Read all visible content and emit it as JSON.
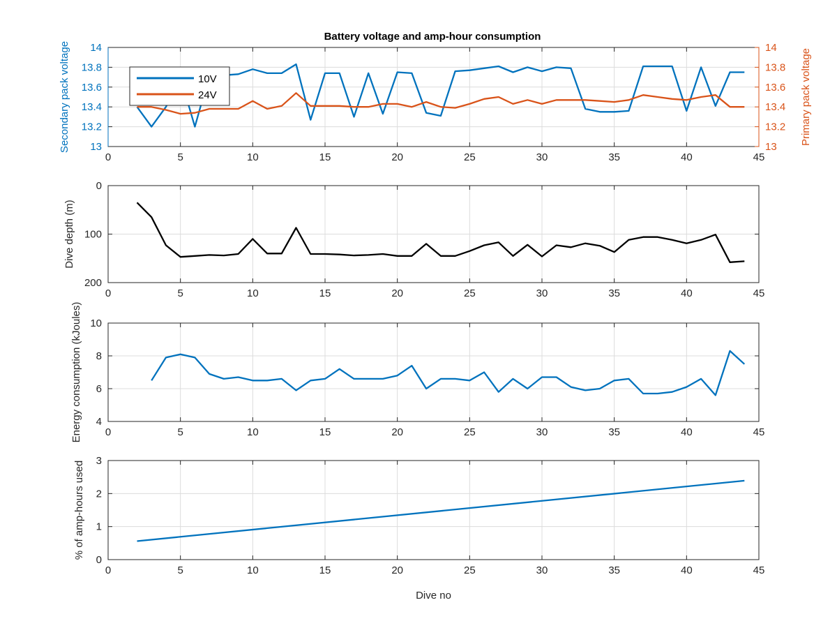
{
  "figure": {
    "title": "Battery voltage and amp-hour consumption",
    "xlabel": "Dive no"
  },
  "chart_data": [
    {
      "type": "line",
      "title": "Battery voltage and amp-hour consumption",
      "xlabel": "",
      "xlim": [
        0,
        45
      ],
      "xticks": [
        0,
        5,
        10,
        15,
        20,
        25,
        30,
        35,
        40,
        45
      ],
      "ylabel": "Secondary pack voltage",
      "ylim": [
        13,
        14
      ],
      "yticks": [
        "13",
        "13.2",
        "13.4",
        "13.6",
        "13.8",
        "14"
      ],
      "ylabel_right": "Primary pack voltage",
      "ylim_right": [
        13,
        14
      ],
      "yticks_right": [
        "13",
        "13.2",
        "13.4",
        "13.6",
        "13.8",
        "14"
      ],
      "legend": "top-left",
      "grid": true,
      "x": [
        2,
        3,
        4,
        5,
        6,
        7,
        8,
        9,
        10,
        11,
        12,
        13,
        14,
        15,
        16,
        17,
        18,
        19,
        20,
        21,
        22,
        23,
        24,
        25,
        26,
        27,
        28,
        29,
        30,
        31,
        32,
        33,
        34,
        35,
        36,
        37,
        38,
        39,
        40,
        41,
        42,
        43,
        44
      ],
      "series": [
        {
          "name": "10V",
          "axis": "left",
          "color": "#0072BD",
          "values": [
            13.4,
            13.2,
            13.4,
            13.7,
            13.2,
            13.72,
            13.72,
            13.73,
            13.78,
            13.74,
            13.74,
            13.83,
            13.27,
            13.74,
            13.74,
            13.3,
            13.74,
            13.33,
            13.75,
            13.74,
            13.34,
            13.31,
            13.76,
            13.77,
            13.79,
            13.81,
            13.75,
            13.8,
            13.76,
            13.8,
            13.79,
            13.38,
            13.35,
            13.35,
            13.36,
            13.81,
            13.81,
            13.81,
            13.36,
            13.8,
            13.41,
            13.75,
            13.75
          ]
        },
        {
          "name": "24V",
          "axis": "right",
          "color": "#D95319",
          "values": [
            13.4,
            13.4,
            13.37,
            13.33,
            13.34,
            13.38,
            13.38,
            13.38,
            13.46,
            13.38,
            13.41,
            13.54,
            13.41,
            13.41,
            13.41,
            13.4,
            13.4,
            13.43,
            13.43,
            13.4,
            13.45,
            13.4,
            13.39,
            13.43,
            13.48,
            13.5,
            13.43,
            13.47,
            13.43,
            13.47,
            13.47,
            13.47,
            13.46,
            13.45,
            13.47,
            13.52,
            13.5,
            13.48,
            13.47,
            13.5,
            13.52,
            13.4,
            13.4
          ]
        }
      ]
    },
    {
      "type": "line",
      "title": "",
      "xlabel": "",
      "xlim": [
        0,
        45
      ],
      "xticks": [
        0,
        5,
        10,
        15,
        20,
        25,
        30,
        35,
        40,
        45
      ],
      "ylabel": "Dive depth (m)",
      "ylim": [
        0,
        200
      ],
      "yticks": [
        "0",
        "100",
        "200"
      ],
      "y_reversed": true,
      "grid": true,
      "x": [
        2,
        3,
        4,
        5,
        6,
        7,
        8,
        9,
        10,
        11,
        12,
        13,
        14,
        15,
        16,
        17,
        18,
        19,
        20,
        21,
        22,
        23,
        24,
        25,
        26,
        27,
        28,
        29,
        30,
        31,
        32,
        33,
        34,
        35,
        36,
        37,
        38,
        39,
        40,
        41,
        42,
        43,
        44
      ],
      "series": [
        {
          "color": "#000000",
          "values": [
            35,
            65,
            123,
            147,
            145,
            143,
            144,
            141,
            110,
            140,
            140,
            87,
            141,
            141,
            142,
            144,
            143,
            141,
            145,
            145,
            120,
            145,
            145,
            135,
            123,
            117,
            145,
            122,
            146,
            123,
            127,
            119,
            124,
            137,
            112,
            106,
            106,
            112,
            119,
            112,
            101,
            158,
            156
          ]
        }
      ]
    },
    {
      "type": "line",
      "title": "",
      "xlabel": "",
      "xlim": [
        0,
        45
      ],
      "xticks": [
        0,
        5,
        10,
        15,
        20,
        25,
        30,
        35,
        40,
        45
      ],
      "ylabel": "Energy consumption (kJoules)",
      "ylim": [
        4,
        10
      ],
      "yticks": [
        "4",
        "6",
        "8",
        "10"
      ],
      "grid": true,
      "x": [
        3,
        4,
        5,
        6,
        7,
        8,
        9,
        10,
        11,
        12,
        13,
        14,
        15,
        16,
        17,
        18,
        19,
        20,
        21,
        22,
        23,
        24,
        25,
        26,
        27,
        28,
        29,
        30,
        31,
        32,
        33,
        34,
        35,
        36,
        37,
        38,
        39,
        40,
        41,
        42,
        43,
        44
      ],
      "series": [
        {
          "color": "#0072BD",
          "values": [
            6.5,
            7.9,
            8.1,
            7.9,
            6.9,
            6.6,
            6.7,
            6.5,
            6.5,
            6.6,
            5.9,
            6.5,
            6.6,
            7.2,
            6.6,
            6.6,
            6.6,
            6.8,
            7.4,
            6.0,
            6.6,
            6.6,
            6.5,
            7.0,
            5.8,
            6.6,
            6.0,
            6.7,
            6.7,
            6.1,
            5.9,
            6.0,
            6.5,
            6.6,
            5.7,
            5.7,
            5.8,
            6.1,
            6.6,
            5.6,
            8.3,
            7.5
          ]
        }
      ]
    },
    {
      "type": "line",
      "title": "",
      "xlabel": "Dive no",
      "xlim": [
        0,
        45
      ],
      "xticks": [
        0,
        5,
        10,
        15,
        20,
        25,
        30,
        35,
        40,
        45
      ],
      "ylabel": "% of amp-hours used",
      "ylim": [
        0,
        3
      ],
      "yticks": [
        "0",
        "1",
        "2",
        "3"
      ],
      "grid": true,
      "x": [
        2,
        44
      ],
      "series": [
        {
          "color": "#0072BD",
          "values": [
            0.56,
            2.39
          ]
        }
      ]
    }
  ]
}
